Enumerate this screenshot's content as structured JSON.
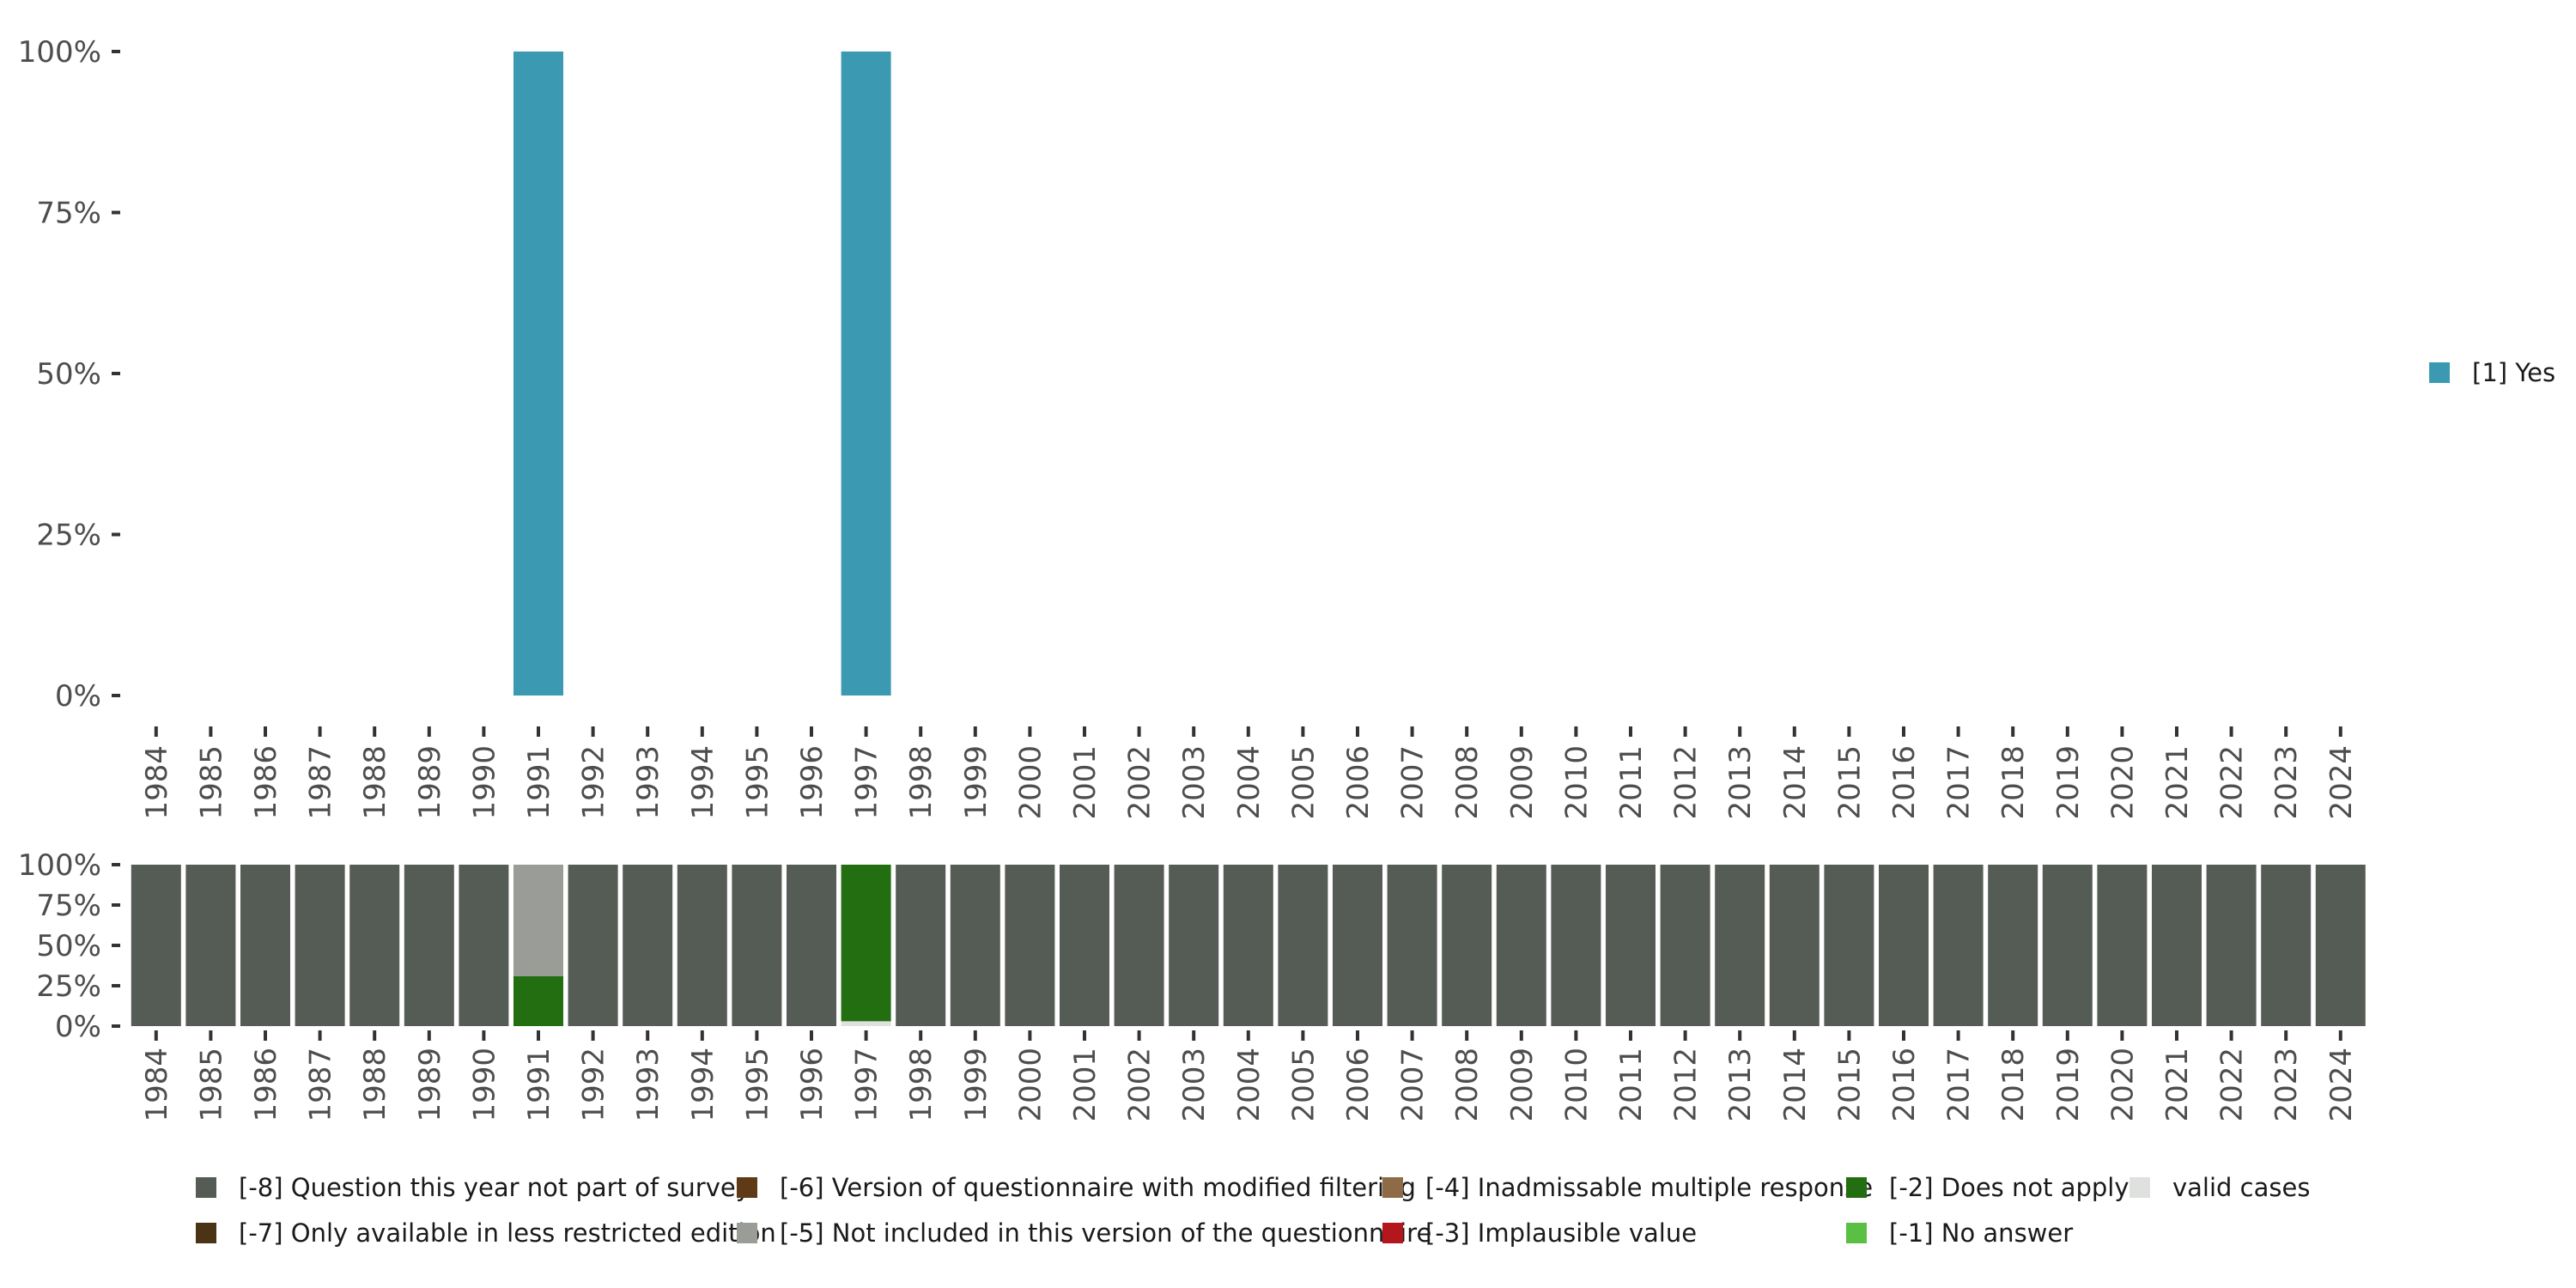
{
  "chart_data": [
    {
      "type": "bar",
      "stacked": true,
      "categories": [
        "1984",
        "1985",
        "1986",
        "1987",
        "1988",
        "1989",
        "1990",
        "1991",
        "1992",
        "1993",
        "1994",
        "1995",
        "1996",
        "1997",
        "1998",
        "1999",
        "2000",
        "2001",
        "2002",
        "2003",
        "2004",
        "2005",
        "2006",
        "2007",
        "2008",
        "2009",
        "2010",
        "2011",
        "2012",
        "2013",
        "2014",
        "2015",
        "2016",
        "2017",
        "2018",
        "2019",
        "2020",
        "2021",
        "2022",
        "2023",
        "2024"
      ],
      "ylim": [
        0,
        100
      ],
      "yticks": [
        0,
        25,
        50,
        75,
        100
      ],
      "ytick_labels": [
        "0%",
        "25%",
        "50%",
        "75%",
        "100%"
      ],
      "grid": false,
      "legend_position": "right",
      "series": [
        {
          "name": "[1] Yes",
          "color": "#3b9ab2",
          "values": [
            null,
            null,
            null,
            null,
            null,
            null,
            null,
            100,
            null,
            null,
            null,
            null,
            null,
            100,
            null,
            null,
            null,
            null,
            null,
            null,
            null,
            null,
            null,
            null,
            null,
            null,
            null,
            null,
            null,
            null,
            null,
            null,
            null,
            null,
            null,
            null,
            null,
            null,
            null,
            null,
            null
          ]
        }
      ]
    },
    {
      "type": "bar",
      "stacked": true,
      "categories": [
        "1984",
        "1985",
        "1986",
        "1987",
        "1988",
        "1989",
        "1990",
        "1991",
        "1992",
        "1993",
        "1994",
        "1995",
        "1996",
        "1997",
        "1998",
        "1999",
        "2000",
        "2001",
        "2002",
        "2003",
        "2004",
        "2005",
        "2006",
        "2007",
        "2008",
        "2009",
        "2010",
        "2011",
        "2012",
        "2013",
        "2014",
        "2015",
        "2016",
        "2017",
        "2018",
        "2019",
        "2020",
        "2021",
        "2022",
        "2023",
        "2024"
      ],
      "ylim": [
        0,
        100
      ],
      "yticks": [
        0,
        25,
        50,
        75,
        100
      ],
      "ytick_labels": [
        "0%",
        "25%",
        "50%",
        "75%",
        "100%"
      ],
      "grid": false,
      "legend_position": "bottom",
      "series": [
        {
          "name": "valid cases",
          "color": "#dfe1df",
          "values": [
            0,
            0,
            0,
            0,
            0,
            0,
            0,
            0,
            0,
            0,
            0,
            0,
            0,
            3,
            0,
            0,
            0,
            0,
            0,
            0,
            0,
            0,
            0,
            0,
            0,
            0,
            0,
            0,
            0,
            0,
            0,
            0,
            0,
            0,
            0,
            0,
            0,
            0,
            0,
            0,
            0
          ]
        },
        {
          "name": "[-2] Does not apply",
          "color": "#226e11",
          "values": [
            0,
            0,
            0,
            0,
            0,
            0,
            0,
            31,
            0,
            0,
            0,
            0,
            0,
            97,
            0,
            0,
            0,
            0,
            0,
            0,
            0,
            0,
            0,
            0,
            0,
            0,
            0,
            0,
            0,
            0,
            0,
            0,
            0,
            0,
            0,
            0,
            0,
            0,
            0,
            0,
            0
          ]
        },
        {
          "name": "[-5] Not included in this version of the questionnaire",
          "color": "#999c97",
          "values": [
            0,
            0,
            0,
            0,
            0,
            0,
            0,
            69,
            0,
            0,
            0,
            0,
            0,
            0,
            0,
            0,
            0,
            0,
            0,
            0,
            0,
            0,
            0,
            0,
            0,
            0,
            0,
            0,
            0,
            0,
            0,
            0,
            0,
            0,
            0,
            0,
            0,
            0,
            0,
            0,
            0
          ]
        },
        {
          "name": "[-8] Question this year not part of survey",
          "color": "#555b55",
          "values": [
            100,
            100,
            100,
            100,
            100,
            100,
            100,
            0,
            100,
            100,
            100,
            100,
            100,
            0,
            100,
            100,
            100,
            100,
            100,
            100,
            100,
            100,
            100,
            100,
            100,
            100,
            100,
            100,
            100,
            100,
            100,
            100,
            100,
            100,
            100,
            100,
            100,
            100,
            100,
            100,
            100
          ]
        }
      ],
      "legend": [
        {
          "label": "[-8] Question this year not part of survey",
          "color": "#555b55"
        },
        {
          "label": "[-7] Only available in less restricted edition",
          "color": "#4b3316"
        },
        {
          "label": "[-6] Version of questionnaire with modified filtering",
          "color": "#5e3a17"
        },
        {
          "label": "[-5] Not included in this version of the questionnaire",
          "color": "#999c97"
        },
        {
          "label": "[-4] Inadmissable multiple response",
          "color": "#8f6a47"
        },
        {
          "label": "[-3] Implausible value",
          "color": "#b3161c"
        },
        {
          "label": "[-2] Does not apply",
          "color": "#226e11"
        },
        {
          "label": "[-1] No answer",
          "color": "#59c043"
        },
        {
          "label": "valid cases",
          "color": "#dfe1df"
        }
      ]
    }
  ]
}
